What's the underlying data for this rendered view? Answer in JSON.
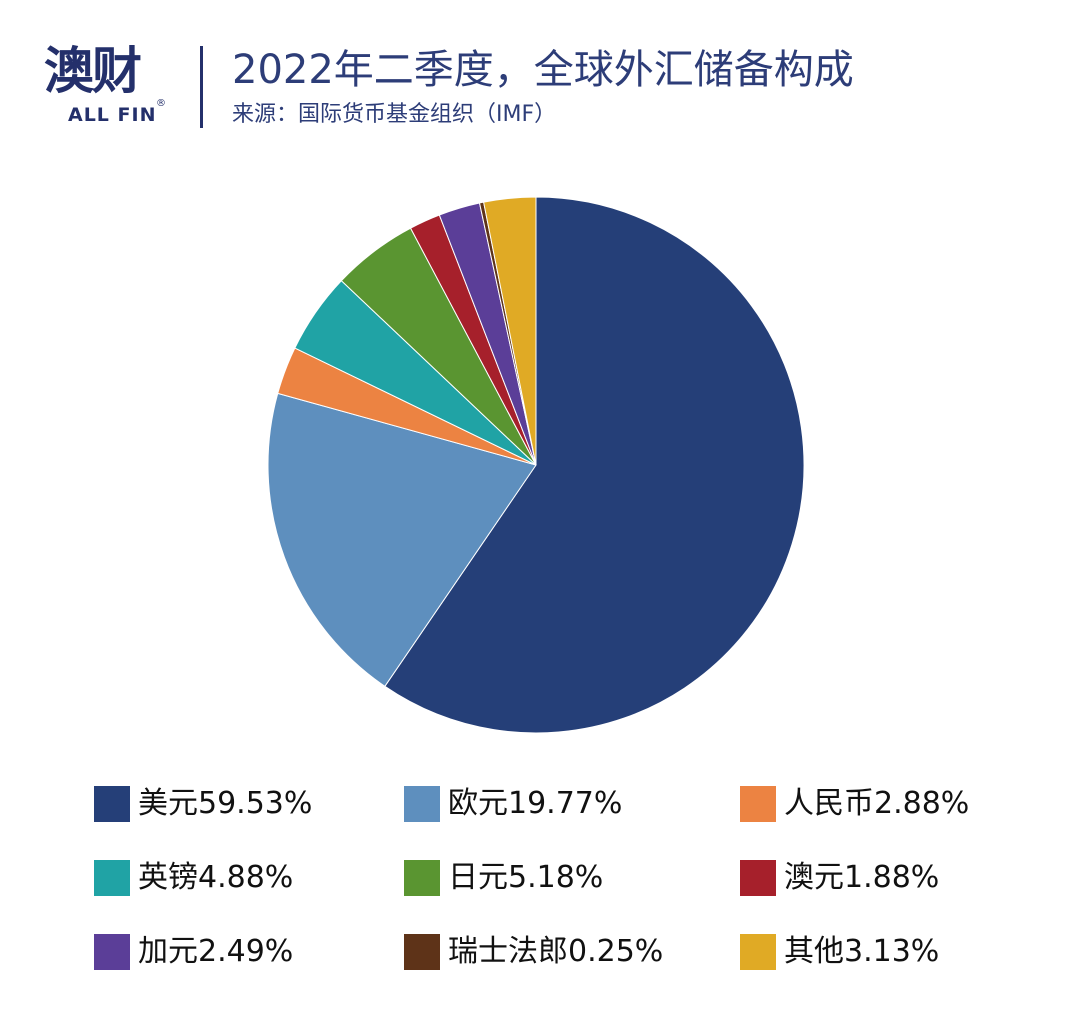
{
  "logo": {
    "cn": "澳财",
    "en": "ALL FIN",
    "reg": "®"
  },
  "header": {
    "title": "2022年二季度，全球外汇储备构成",
    "subtitle": "来源：国际货币基金组织（IMF）"
  },
  "chart_data": {
    "type": "pie",
    "title": "2022年二季度，全球外汇储备构成",
    "subtitle": "来源：国际货币基金组织（IMF）",
    "start": "12 o'clock, clockwise",
    "legend_position": "bottom",
    "slices": [
      {
        "label": "美元59.53%",
        "name": "美元",
        "value": 59.53,
        "color": "#253f78"
      },
      {
        "label": "欧元19.77%",
        "name": "欧元",
        "value": 19.77,
        "color": "#5e8fbe"
      },
      {
        "label": "人民币2.88%",
        "name": "人民币",
        "value": 2.88,
        "color": "#ec8342"
      },
      {
        "label": "英镑4.88%",
        "name": "英镑",
        "value": 4.88,
        "color": "#20a3a5"
      },
      {
        "label": "日元5.18%",
        "name": "日元",
        "value": 5.18,
        "color": "#5a9531"
      },
      {
        "label": "澳元1.88%",
        "name": "澳元",
        "value": 1.88,
        "color": "#a6202b"
      },
      {
        "label": "加元2.49%",
        "name": "加元",
        "value": 2.49,
        "color": "#5b3e98"
      },
      {
        "label": "瑞士法郎0.25%",
        "name": "瑞士法郎",
        "value": 0.25,
        "color": "#5e3318"
      },
      {
        "label": "其他3.13%",
        "name": "其他",
        "value": 3.13,
        "color": "#e0aa25"
      }
    ]
  }
}
